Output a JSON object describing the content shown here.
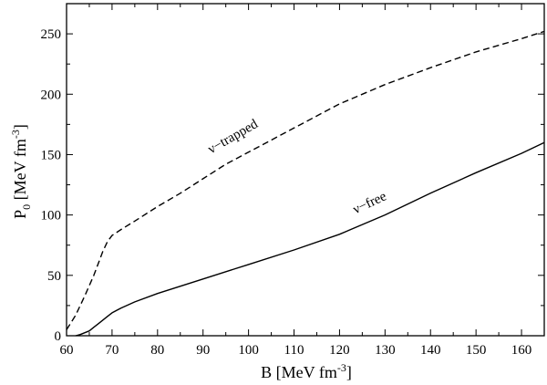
{
  "chart_data": {
    "type": "line",
    "title": "",
    "xlabel": {
      "main": "B [MeV fm",
      "sup": "-3",
      "close": "]"
    },
    "ylabel": {
      "main": "P",
      "sub": "0",
      "rest": " [MeV fm",
      "sup": "-3",
      "close": "]"
    },
    "xlim": [
      60,
      165
    ],
    "ylim": [
      0,
      275
    ],
    "xticks": [
      60,
      70,
      80,
      90,
      100,
      110,
      120,
      130,
      140,
      150,
      160
    ],
    "yticks": [
      0,
      50,
      100,
      150,
      200,
      250
    ],
    "grid": false,
    "legend": "none",
    "series": [
      {
        "name": "ν−trapped",
        "style": "dashed",
        "color": "#000000",
        "x": [
          60,
          62,
          64,
          66,
          68,
          69,
          70,
          72,
          75,
          80,
          85,
          90,
          95,
          100,
          110,
          120,
          130,
          140,
          150,
          160,
          165
        ],
        "y": [
          5,
          17,
          33,
          50,
          70,
          78,
          83,
          88,
          95,
          107,
          118,
          130,
          142,
          152,
          172,
          192,
          208,
          222,
          235,
          246,
          252
        ]
      },
      {
        "name": "ν−free",
        "style": "solid",
        "color": "#000000",
        "x": [
          62,
          63,
          64,
          65,
          66,
          67,
          68,
          69,
          70,
          72,
          75,
          80,
          90,
          100,
          110,
          120,
          130,
          140,
          150,
          160,
          165
        ],
        "y": [
          0,
          1,
          2.5,
          4,
          7,
          10,
          13,
          16,
          19,
          23,
          28,
          35,
          47,
          59,
          71,
          84,
          100,
          118,
          135,
          151,
          160
        ]
      }
    ],
    "annotations": [
      {
        "text": "ν−trapped",
        "x": 97,
        "y": 162,
        "rotate": -30
      },
      {
        "text": "ν−free",
        "x": 127,
        "y": 107,
        "rotate": -25
      }
    ]
  }
}
